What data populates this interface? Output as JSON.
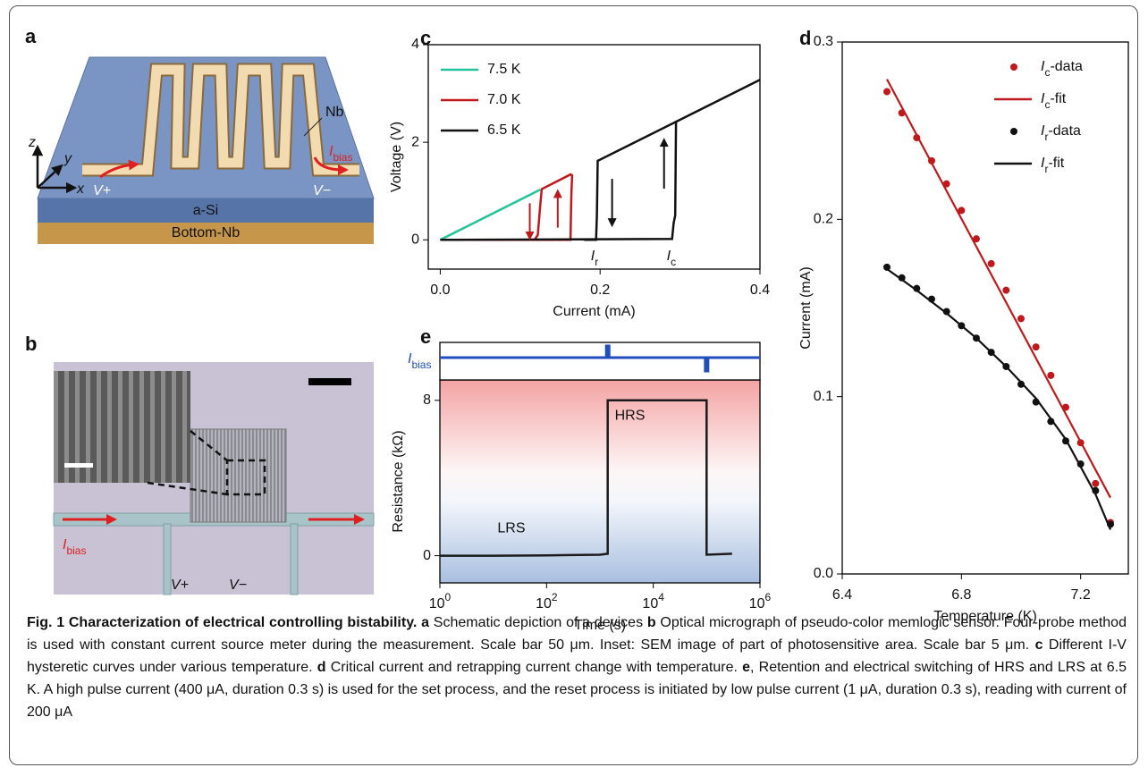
{
  "figure": {
    "schematic": {
      "label": "a",
      "axes": {
        "z": "z",
        "y": "y",
        "x": "x"
      },
      "electrode": "Nb",
      "current": {
        "italic": "I",
        "sub": "bias"
      },
      "terminals": [
        "V+",
        "V−"
      ],
      "layers": [
        "a-Si",
        "Bottom-Nb"
      ]
    },
    "micrograph": {
      "label": "b",
      "current": {
        "italic": "I",
        "sub": "bias"
      },
      "terminals": [
        "V+",
        "V−"
      ]
    },
    "caption": [
      {
        "text": "Fig. 1 Characterization of electrical controlling bistability.",
        "bold": true
      },
      {
        "text": "a",
        "bold": true
      },
      {
        "text": "Schematic depiction of a devices"
      },
      {
        "text": "b",
        "bold": true
      },
      {
        "text": "Optical micrograph of pseudo-color memlogic sensor. Four-probe method is used with constant current source meter during the measurement. Scale bar 50 μm. Inset: SEM image of part of photosensitive area. Scale bar 5 μm."
      },
      {
        "text": "c",
        "bold": true
      },
      {
        "text": "Different I-V hysteretic curves under various temperature."
      },
      {
        "text": "d",
        "bold": true
      },
      {
        "text": "Critical current and retrapping current change with temperature."
      },
      {
        "text": "e",
        "bold": true
      },
      {
        "text": ", Retention and electrical switching of HRS and LRS at 6.5 K. A high pulse current (400 μA, duration 0.3 s) is used for the set process, and the reset process is initiated by low pulse current (1 μA, duration 0.3 s), reading with current of 200 μA"
      }
    ]
  },
  "chart_data": [
    {
      "panel": "c",
      "type": "line",
      "x_label": "Current (mA)",
      "y_label": "Voltage (V)",
      "xlim": [
        -0.015,
        0.4
      ],
      "ylim": [
        -0.6,
        4
      ],
      "xticks": [
        {
          "value": 0,
          "label": "0.0"
        },
        0.2,
        0.4
      ],
      "yticks": [
        0,
        2,
        4
      ],
      "legend": "upper left",
      "series": [
        {
          "name": "7.5 K",
          "color": "#22c49a",
          "x": [
            0,
            0.125
          ],
          "values": [
            0,
            1.03
          ]
        },
        {
          "name": "7.0 K",
          "color": "#c0191c",
          "x": [
            0,
            0.163,
            0.164,
            0.165,
            0.163,
            0.127,
            0.125,
            0.122,
            0.118,
            0.1
          ],
          "values": [
            0,
            0,
            0.9,
            1.32,
            1.34,
            1.04,
            0.7,
            0.1,
            0,
            0
          ]
        },
        {
          "name": "6.5 K",
          "color": "#111111",
          "x": [
            0,
            0.29,
            0.292,
            0.294,
            0.295,
            0.4,
            0.197,
            0.196,
            0.195,
            0.18
          ],
          "values": [
            0,
            0.02,
            0.35,
            0.5,
            2.42,
            3.28,
            1.62,
            0.5,
            0,
            0
          ]
        }
      ],
      "annotations": [
        {
          "italic": "I",
          "sub": "r"
        },
        {
          "italic": "I",
          "sub": "c"
        }
      ]
    },
    {
      "panel": "d",
      "type": "scatter",
      "x_label": "Temperature (K)",
      "y_label": "Current (mA)",
      "xlim": [
        6.4,
        7.36
      ],
      "ylim": [
        0,
        0.3
      ],
      "xticks": [
        6.4,
        6.8,
        7.2
      ],
      "yticks": [
        {
          "value": 0,
          "label": "0.0"
        },
        0.1,
        0.2,
        0.3
      ],
      "legend": "upper right",
      "series": [
        {
          "name": {
            "italic": "I",
            "sub": "c",
            "text": "-data"
          },
          "style": "marker",
          "color": "#c0191c",
          "x": [
            6.55,
            6.6,
            6.65,
            6.7,
            6.75,
            6.8,
            6.85,
            6.9,
            6.95,
            7.0,
            7.05,
            7.1,
            7.15,
            7.2,
            7.25,
            7.3
          ],
          "values": [
            0.272,
            0.26,
            0.246,
            0.233,
            0.22,
            0.205,
            0.189,
            0.175,
            0.16,
            0.144,
            0.128,
            0.112,
            0.094,
            0.074,
            0.051,
            0.029
          ]
        },
        {
          "name": {
            "italic": "I",
            "sub": "c",
            "text": "-fit"
          },
          "style": "line",
          "color": "#c0191c",
          "x": [
            6.55,
            7.3
          ],
          "values": [
            0.279,
            0.043
          ]
        },
        {
          "name": {
            "italic": "I",
            "sub": "r",
            "text": "-data"
          },
          "style": "marker",
          "color": "#111111",
          "x": [
            6.55,
            6.6,
            6.65,
            6.7,
            6.75,
            6.8,
            6.85,
            6.9,
            6.95,
            7.0,
            7.05,
            7.1,
            7.15,
            7.2,
            7.25,
            7.3
          ],
          "values": [
            0.173,
            0.167,
            0.161,
            0.155,
            0.148,
            0.14,
            0.133,
            0.125,
            0.117,
            0.107,
            0.097,
            0.086,
            0.075,
            0.062,
            0.047,
            0.028
          ]
        },
        {
          "name": {
            "italic": "I",
            "sub": "r",
            "text": "-fit"
          },
          "style": "line",
          "color": "#111111",
          "x": [
            6.55,
            6.65,
            6.75,
            6.85,
            6.95,
            7.05,
            7.15,
            7.25,
            7.3
          ],
          "values": [
            0.172,
            0.16,
            0.147,
            0.133,
            0.117,
            0.099,
            0.076,
            0.045,
            0.025
          ]
        }
      ]
    },
    {
      "panel": "e",
      "type": "line",
      "xscale": "log",
      "x_label": "Time (s)",
      "y_label": "Resistance (kΩ)",
      "xlim": [
        1,
        1000000
      ],
      "ylim": [
        -1.4,
        9.05
      ],
      "xticks": [
        {
          "value": 1,
          "label": "10",
          "exp": "0"
        },
        {
          "value": 100,
          "label": "10",
          "exp": "2"
        },
        {
          "value": 10000,
          "label": "10",
          "exp": "4"
        },
        {
          "value": 1000000,
          "label": "10",
          "exp": "6"
        }
      ],
      "yticks": [
        0,
        8
      ],
      "series": [
        {
          "color": "#1a1a1a",
          "x": [
            1,
            10,
            100,
            1000,
            1400,
            1400,
            100000,
            100000,
            300000
          ],
          "values": [
            0,
            0,
            0.02,
            0.05,
            0.1,
            8,
            8,
            0.05,
            0.1
          ]
        }
      ],
      "bias_trace": {
        "label": {
          "italic": "I",
          "sub": "bias"
        },
        "color": "#1f4fbf"
      },
      "annotations": [
        "LRS",
        "HRS"
      ]
    }
  ]
}
